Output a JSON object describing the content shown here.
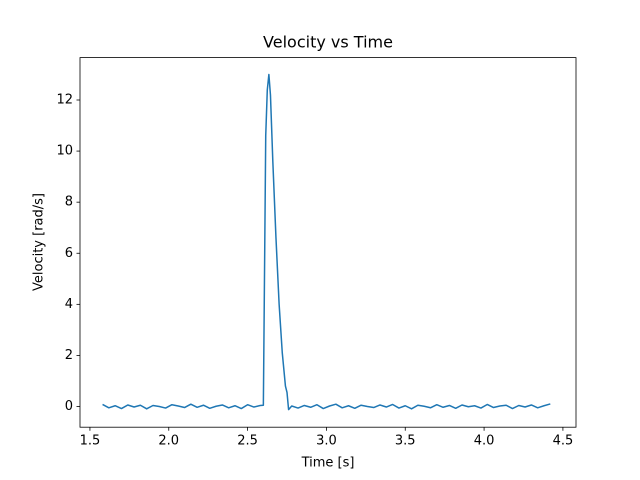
{
  "chart_data": {
    "type": "line",
    "title": "Velocity vs Time",
    "xlabel": "Time [s]",
    "ylabel": "Velocity [rad/s]",
    "color": "#1f77b4",
    "x": [
      1.58,
      1.62,
      1.66,
      1.7,
      1.74,
      1.78,
      1.82,
      1.86,
      1.9,
      1.94,
      1.98,
      2.02,
      2.06,
      2.1,
      2.14,
      2.18,
      2.22,
      2.26,
      2.3,
      2.34,
      2.38,
      2.42,
      2.46,
      2.5,
      2.54,
      2.58,
      2.6,
      2.615,
      2.625,
      2.635,
      2.645,
      2.66,
      2.68,
      2.7,
      2.72,
      2.74,
      2.75,
      2.76,
      2.78,
      2.82,
      2.86,
      2.9,
      2.94,
      2.98,
      3.02,
      3.06,
      3.1,
      3.14,
      3.18,
      3.22,
      3.26,
      3.3,
      3.34,
      3.38,
      3.42,
      3.46,
      3.5,
      3.54,
      3.58,
      3.62,
      3.66,
      3.7,
      3.74,
      3.78,
      3.82,
      3.86,
      3.9,
      3.94,
      3.98,
      4.02,
      4.06,
      4.1,
      4.14,
      4.18,
      4.22,
      4.26,
      4.3,
      4.34,
      4.38,
      4.42
    ],
    "values": [
      0.08,
      -0.05,
      0.03,
      -0.08,
      0.06,
      -0.02,
      0.05,
      -0.09,
      0.04,
      0.0,
      -0.06,
      0.07,
      0.02,
      -0.04,
      0.09,
      -0.03,
      0.05,
      -0.07,
      0.01,
      0.06,
      -0.05,
      0.03,
      -0.08,
      0.07,
      -0.02,
      0.04,
      0.05,
      10.6,
      12.4,
      13.0,
      12.2,
      9.6,
      6.6,
      4.0,
      2.1,
      0.8,
      0.55,
      -0.12,
      0.02,
      -0.06,
      0.04,
      -0.03,
      0.07,
      -0.08,
      0.02,
      0.09,
      -0.05,
      0.03,
      -0.07,
      0.05,
      0.0,
      -0.04,
      0.06,
      -0.02,
      0.08,
      -0.06,
      0.03,
      -0.09,
      0.05,
      0.01,
      -0.05,
      0.07,
      -0.03,
      0.04,
      -0.07,
      0.06,
      -0.01,
      0.03,
      -0.06,
      0.08,
      -0.04,
      0.02,
      0.05,
      -0.08,
      0.04,
      -0.02,
      0.06,
      -0.05,
      0.03,
      0.1
    ],
    "xlim": [
      1.437,
      4.583
    ],
    "ylim": [
      -0.81,
      13.66
    ],
    "xticks": [
      {
        "value": 1.5,
        "label": "1.5"
      },
      {
        "value": 2,
        "label": "2.0"
      },
      {
        "value": 2.5,
        "label": "2.5"
      },
      {
        "value": 3,
        "label": "3.0"
      },
      {
        "value": 3.5,
        "label": "3.5"
      },
      {
        "value": 4,
        "label": "4.0"
      },
      {
        "value": 4.5,
        "label": "4.5"
      }
    ],
    "yticks": [
      0,
      2,
      4,
      6,
      8,
      10,
      12
    ],
    "grid": false
  }
}
